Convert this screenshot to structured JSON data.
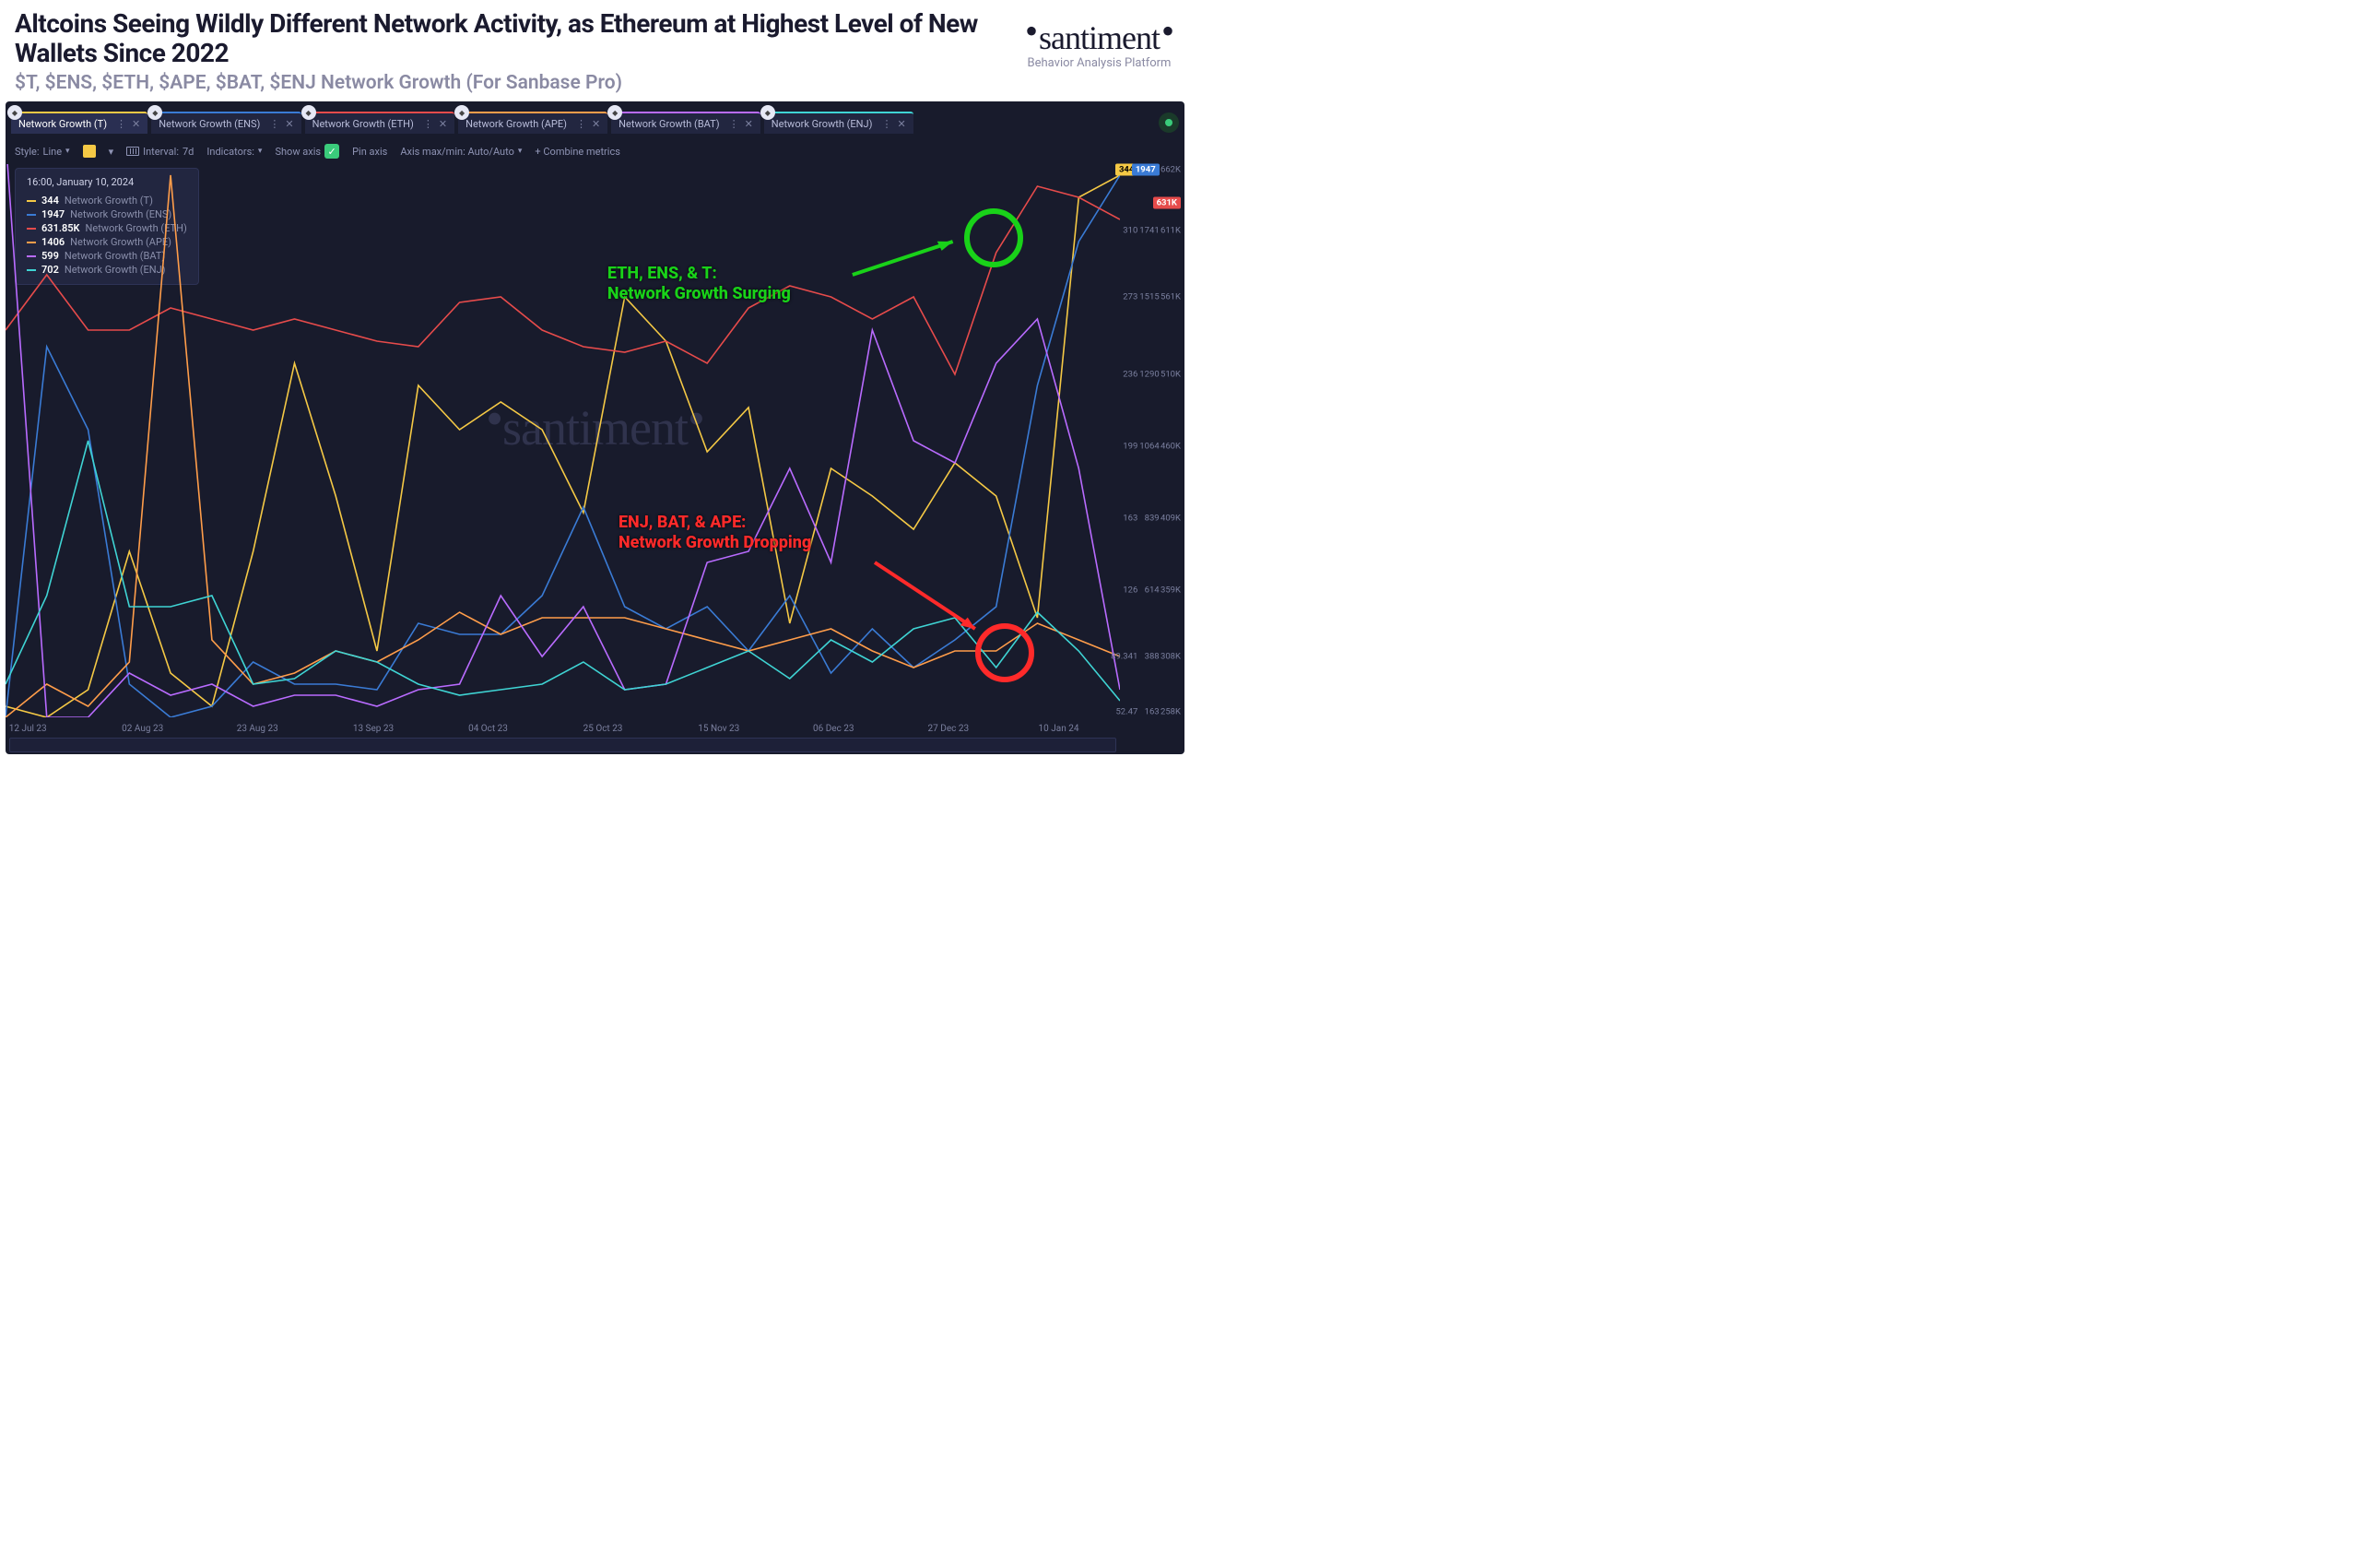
{
  "header": {
    "title": "Altcoins Seeing Wildly Different Network Activity, as Ethereum at Highest Level of New Wallets Since 2022",
    "subtitle": "$T, $ENS, $ETH, $APE, $BAT, $ENJ Network Growth (For Sanbase Pro)",
    "brand_name": "santiment",
    "brand_tag": "Behavior Analysis Platform"
  },
  "tabs": [
    {
      "label": "Network Growth (T)",
      "color": "#f5c945",
      "active": true
    },
    {
      "label": "Network Growth (ENS)",
      "color": "#3a7bd5",
      "active": false
    },
    {
      "label": "Network Growth (ETH)",
      "color": "#e64b4b",
      "active": false
    },
    {
      "label": "Network Growth (APE)",
      "color": "#ff9d4a",
      "active": false
    },
    {
      "label": "Network Growth (BAT)",
      "color": "#b96bff",
      "active": false
    },
    {
      "label": "Network Growth (ENJ)",
      "color": "#3fd4d4",
      "active": false
    }
  ],
  "toolbar": {
    "style_label": "Style:",
    "style_value": "Line",
    "interval_label": "Interval:",
    "interval_value": "7d",
    "indicators": "Indicators:",
    "show_axis": "Show axis",
    "pin_axis": "Pin axis",
    "axis_minmax": "Axis max/min: Auto/Auto",
    "combine": "+ Combine metrics"
  },
  "legend": {
    "timestamp": "16:00, January 10, 2024",
    "rows": [
      {
        "value": "344",
        "name": "Network Growth (T)",
        "color": "#f5c945"
      },
      {
        "value": "1947",
        "name": "Network Growth (ENS)",
        "color": "#3a7bd5"
      },
      {
        "value": "631.85K",
        "name": "Network Growth (ETH)",
        "color": "#e64b4b"
      },
      {
        "value": "1406",
        "name": "Network Growth (APE)",
        "color": "#ff9d4a"
      },
      {
        "value": "599",
        "name": "Network Growth (BAT)",
        "color": "#b96bff"
      },
      {
        "value": "702",
        "name": "Network Growth (ENJ)",
        "color": "#3fd4d4"
      }
    ]
  },
  "chart": {
    "type": "line",
    "background_color": "#181b2c",
    "watermark": "santiment",
    "line_width": 1.6,
    "x_dates": [
      "12 Jul 23",
      "02 Aug 23",
      "23 Aug 23",
      "13 Sep 23",
      "04 Oct 23",
      "25 Oct 23",
      "15 Nov 23",
      "06 Dec 23",
      "27 Dec 23",
      "10 Jan 24"
    ],
    "x_positions_pct": [
      2,
      12.3,
      22.6,
      33,
      43.3,
      53.6,
      64,
      74.3,
      84.6,
      94.5
    ],
    "series": [
      {
        "key": "T",
        "color": "#f5c945",
        "ys": [
          98,
          100,
          95,
          70,
          92,
          98,
          70,
          36,
          60,
          88,
          40,
          48,
          43,
          48,
          63,
          24,
          32,
          52,
          44,
          83,
          55,
          60,
          66,
          54,
          60,
          82,
          6,
          2
        ]
      },
      {
        "key": "ENS",
        "color": "#3a7bd5",
        "ys": [
          100,
          33,
          48,
          94,
          100,
          98,
          90,
          94,
          94,
          95,
          83,
          85,
          85,
          78,
          62,
          80,
          84,
          80,
          88,
          78,
          92,
          84,
          91,
          86,
          80,
          40,
          14,
          2
        ]
      },
      {
        "key": "ETH",
        "color": "#e64b4b",
        "ys": [
          30,
          20,
          30,
          30,
          26,
          28,
          30,
          28,
          30,
          32,
          33,
          25,
          24,
          30,
          33,
          34,
          32,
          36,
          26,
          22,
          24,
          28,
          24,
          38,
          16,
          4,
          6,
          10
        ]
      },
      {
        "key": "APE",
        "color": "#ff9d4a",
        "ys": [
          100,
          94,
          98,
          90,
          2,
          86,
          94,
          92,
          88,
          90,
          86,
          81,
          85,
          82,
          82,
          82,
          84,
          86,
          88,
          86,
          84,
          88,
          91,
          88,
          88,
          83,
          86,
          89
        ]
      },
      {
        "key": "BAT",
        "color": "#b96bff",
        "ys": [
          -5,
          100,
          100,
          92,
          96,
          94,
          98,
          96,
          96,
          98,
          95,
          94,
          78,
          89,
          80,
          95,
          94,
          72,
          70,
          55,
          72,
          30,
          50,
          54,
          36,
          28,
          55,
          95
        ]
      },
      {
        "key": "ENJ",
        "color": "#3fd4d4",
        "ys": [
          94,
          78,
          50,
          80,
          80,
          78,
          94,
          93,
          88,
          90,
          94,
          96,
          95,
          94,
          90,
          95,
          94,
          91,
          88,
          93,
          86,
          90,
          84,
          82,
          91,
          81,
          88,
          97
        ]
      }
    ],
    "right_axes": [
      {
        "highlight": {
          "text": "344",
          "class": "ybadge",
          "pos_pct": 1
        },
        "ticks": [
          {
            "text": "310",
            "pos_pct": 12
          },
          {
            "text": "273",
            "pos_pct": 24
          },
          {
            "text": "236",
            "pos_pct": 38
          },
          {
            "text": "199",
            "pos_pct": 51
          },
          {
            "text": "163",
            "pos_pct": 64
          },
          {
            "text": "126",
            "pos_pct": 77
          },
          {
            "text": "89.341",
            "pos_pct": 89
          },
          {
            "text": "52.47",
            "pos_pct": 99
          }
        ]
      },
      {
        "highlight": {
          "text": "1947",
          "class": "ybadge blue",
          "pos_pct": 1
        },
        "ticks": [
          {
            "text": "1741",
            "pos_pct": 12
          },
          {
            "text": "1515",
            "pos_pct": 24
          },
          {
            "text": "1290",
            "pos_pct": 38
          },
          {
            "text": "1064",
            "pos_pct": 51
          },
          {
            "text": "839",
            "pos_pct": 64
          },
          {
            "text": "614",
            "pos_pct": 77
          },
          {
            "text": "388",
            "pos_pct": 89
          },
          {
            "text": "163",
            "pos_pct": 99
          }
        ]
      },
      {
        "highlight": {
          "text": "631K",
          "class": "ybadge red",
          "pos_pct": 7
        },
        "ticks": [
          {
            "text": "662K",
            "pos_pct": 1
          },
          {
            "text": "611K",
            "pos_pct": 12
          },
          {
            "text": "561K",
            "pos_pct": 24
          },
          {
            "text": "510K",
            "pos_pct": 38
          },
          {
            "text": "460K",
            "pos_pct": 51
          },
          {
            "text": "409K",
            "pos_pct": 64
          },
          {
            "text": "359K",
            "pos_pct": 77
          },
          {
            "text": "308K",
            "pos_pct": 89
          },
          {
            "text": "258K",
            "pos_pct": 99
          }
        ]
      }
    ]
  },
  "annotations": {
    "surge": {
      "text1": "ETH, ENS, & T:",
      "text2": "Network Growth Surging",
      "color": "#19d219",
      "label_left_pct": 54,
      "label_top_pct": 18,
      "ring_left_pct": 86,
      "ring_top_pct": 8,
      "ring_size": 64,
      "arrow_from": [
        76,
        20
      ],
      "arrow_to": [
        85,
        14
      ]
    },
    "drop": {
      "text1": "ENJ, BAT, & APE:",
      "text2": "Network Growth Dropping",
      "color": "#ff2a2a",
      "label_left_pct": 55,
      "label_top_pct": 63,
      "ring_left_pct": 87,
      "ring_top_pct": 83,
      "ring_size": 64,
      "arrow_from": [
        78,
        72
      ],
      "arrow_to": [
        87,
        84
      ]
    }
  }
}
